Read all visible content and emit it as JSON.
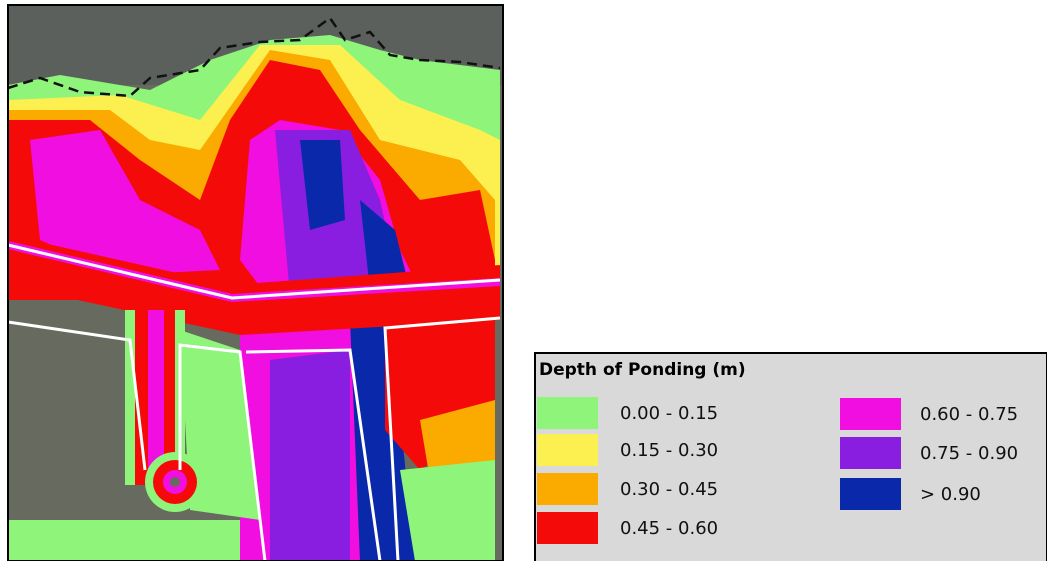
{
  "legend": {
    "title": "Depth of Ponding (m)",
    "items": [
      {
        "label": "0.00 - 0.15",
        "color": "#8ef57a"
      },
      {
        "label": "0.15 - 0.30",
        "color": "#fbf050"
      },
      {
        "label": "0.30 - 0.45",
        "color": "#fbaa00"
      },
      {
        "label": "0.45 - 0.60",
        "color": "#f50a0a"
      },
      {
        "label": "0.60 - 0.75",
        "color": "#f00ee0"
      },
      {
        "label": "0.75 - 0.90",
        "color": "#8a1ee0"
      },
      {
        "label": "> 0.90",
        "color": "#0a28aa"
      }
    ]
  }
}
